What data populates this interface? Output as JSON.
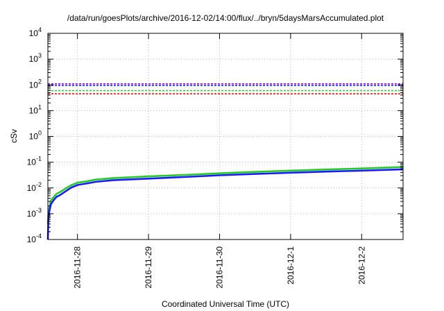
{
  "chart_data": {
    "type": "line",
    "title": "/data/run/goesPlots/archive/2016-12-02/14:00/flux/../bryn/5daysMarsAccumulated.plot",
    "xlabel": "Coordinated Universal Time (UTC)",
    "ylabel": "cSv",
    "y_scale": "log",
    "ylim": [
      0.0001,
      10000
    ],
    "y_ticks": [
      {
        "value": 0.0001,
        "base": "10",
        "exp": "-4"
      },
      {
        "value": 0.001,
        "base": "10",
        "exp": "-3"
      },
      {
        "value": 0.01,
        "base": "10",
        "exp": "-2"
      },
      {
        "value": 0.1,
        "base": "10",
        "exp": "-1"
      },
      {
        "value": 1,
        "base": "10",
        "exp": "0"
      },
      {
        "value": 10,
        "base": "10",
        "exp": "1"
      },
      {
        "value": 100,
        "base": "10",
        "exp": "2"
      },
      {
        "value": 1000,
        "base": "10",
        "exp": "3"
      },
      {
        "value": 10000,
        "base": "10",
        "exp": "4"
      }
    ],
    "xlim": [
      "2016-11-27T14:00",
      "2016-12-02T14:00"
    ],
    "x_ticks": [
      {
        "value": "2016-11-28T00:00",
        "label": "2016-11-28"
      },
      {
        "value": "2016-11-29T00:00",
        "label": "2016-11-29"
      },
      {
        "value": "2016-11-30T00:00",
        "label": "2016-11-30"
      },
      {
        "value": "2016-12-01T00:00",
        "label": "2016-12-1"
      },
      {
        "value": "2016-12-02T00:00",
        "label": "2016-12-2"
      }
    ],
    "grid": true,
    "reference_lines": [
      {
        "y": 110,
        "color": "#9400d3"
      },
      {
        "y": 95,
        "color": "#1a1aff"
      },
      {
        "y": 60,
        "color": "#22cc22"
      },
      {
        "y": 45,
        "color": "#e60000"
      }
    ],
    "series": [
      {
        "color": "#22cc22",
        "x": [
          "2016-11-27T14:00",
          "2016-11-27T14:10",
          "2016-11-27T14:30",
          "2016-11-27T15:00",
          "2016-11-27T16:00",
          "2016-11-27T17:00",
          "2016-11-27T18:00",
          "2016-11-27T20:00",
          "2016-11-27T22:00",
          "2016-11-28T00:00",
          "2016-11-28T03:00",
          "2016-11-28T06:00",
          "2016-11-28T12:00",
          "2016-11-29T00:00",
          "2016-11-29T12:00",
          "2016-11-30T00:00",
          "2016-11-30T12:00",
          "2016-12-01T00:00",
          "2016-12-01T12:00",
          "2016-12-02T00:00",
          "2016-12-02T14:00"
        ],
        "y": [
          0.0004,
          0.0009,
          0.0017,
          0.0032,
          0.0045,
          0.006,
          0.0068,
          0.0095,
          0.013,
          0.016,
          0.018,
          0.021,
          0.024,
          0.028,
          0.032,
          0.037,
          0.042,
          0.047,
          0.052,
          0.057,
          0.065
        ]
      },
      {
        "color": "#1a1aff",
        "x": [
          "2016-11-27T14:00",
          "2016-11-27T14:10",
          "2016-11-27T14:30",
          "2016-11-27T15:00",
          "2016-11-27T16:00",
          "2016-11-27T17:00",
          "2016-11-27T18:00",
          "2016-11-27T20:00",
          "2016-11-27T22:00",
          "2016-11-28T00:00",
          "2016-11-28T03:00",
          "2016-11-28T06:00",
          "2016-11-28T12:00",
          "2016-11-29T00:00",
          "2016-11-29T12:00",
          "2016-11-30T00:00",
          "2016-11-30T12:00",
          "2016-12-01T00:00",
          "2016-12-01T12:00",
          "2016-12-02T00:00",
          "2016-12-02T14:00"
        ],
        "y": [
          0.0001,
          0.0006,
          0.0012,
          0.0023,
          0.0034,
          0.0046,
          0.0052,
          0.0074,
          0.0105,
          0.013,
          0.0148,
          0.0172,
          0.02,
          0.023,
          0.0265,
          0.031,
          0.035,
          0.039,
          0.043,
          0.047,
          0.053
        ]
      }
    ]
  }
}
